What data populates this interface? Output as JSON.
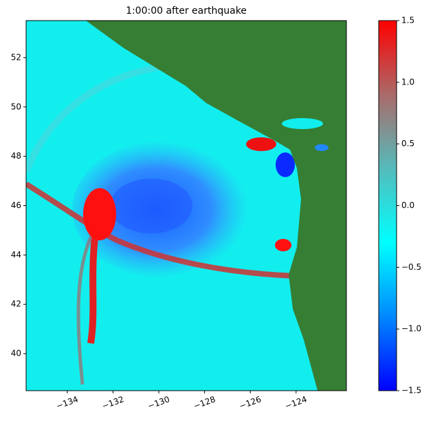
{
  "chart_data": {
    "type": "heatmap",
    "title": "1:00:00 after earthquake",
    "xlim": [
      -135.8,
      -121.8
    ],
    "xticks": [
      {
        "value": -134,
        "label": "−134"
      },
      {
        "value": -132,
        "label": "−132"
      },
      {
        "value": -130,
        "label": "−130"
      },
      {
        "value": -128,
        "label": "−128"
      },
      {
        "value": -126,
        "label": "−126"
      },
      {
        "value": -124,
        "label": "−124"
      }
    ],
    "ylim": [
      38.5,
      53.5
    ],
    "yticks": [
      40,
      42,
      44,
      46,
      48,
      50,
      52
    ],
    "colorbar": {
      "lim": [
        -1.5,
        1.5
      ],
      "ticks": [
        {
          "value": -1.5,
          "label": "−1.5"
        },
        {
          "value": -1,
          "label": "−1.0"
        },
        {
          "value": -0.5,
          "label": "−0.5"
        },
        {
          "value": 0,
          "label": "0.0"
        },
        0.5,
        {
          "value": 1,
          "label": "1.0"
        },
        1.5
      ],
      "colors": [
        "#0000ff",
        "#0088ff",
        "#00ffff",
        "#55bbbb",
        "#aa6a6a",
        "#ff0000"
      ]
    }
  }
}
